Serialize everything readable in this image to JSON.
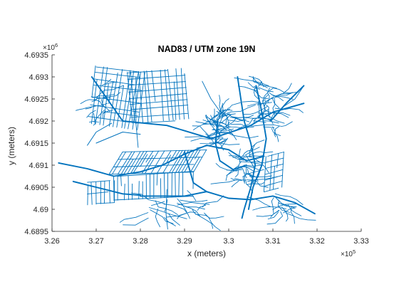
{
  "chart_data": {
    "type": "map",
    "title": "NAD83 / UTM zone 19N",
    "xlabel": "x (meters)",
    "ylabel": "y (meters)",
    "x_exponent_label": "×10",
    "x_exponent_power": "5",
    "y_exponent_label": "×10",
    "y_exponent_power": "6",
    "xlim": [
      3.26,
      3.33
    ],
    "ylim": [
      4.6895,
      4.6935
    ],
    "x_ticks": [
      3.26,
      3.27,
      3.28,
      3.29,
      3.3,
      3.31,
      3.32,
      3.33
    ],
    "x_tick_labels": [
      "3.26",
      "3.27",
      "3.28",
      "3.29",
      "3.3",
      "3.31",
      "3.32",
      "3.33"
    ],
    "y_ticks": [
      4.6895,
      4.69,
      4.6905,
      4.691,
      4.6915,
      4.692,
      4.6925,
      4.693,
      4.6935
    ],
    "y_tick_labels": [
      "4.6895",
      "4.69",
      "4.6905",
      "4.691",
      "4.6915",
      "4.692",
      "4.6925",
      "4.693",
      "4.6935"
    ],
    "line_color": "#0072BD",
    "series": [
      {
        "type": "highway",
        "polylines": [
          [
            [
              3.2615,
              4.69105
            ],
            [
              3.268,
              4.69092
            ],
            [
              3.274,
              4.69075
            ],
            [
              3.28,
              4.69085
            ],
            [
              3.285,
              4.691
            ],
            [
              3.29,
              4.69125
            ],
            [
              3.295,
              4.69145
            ],
            [
              3.3,
              4.69135
            ],
            [
              3.304,
              4.6911
            ],
            [
              3.308,
              4.6912
            ]
          ],
          [
            [
              3.2648,
              4.69063
            ],
            [
              3.27,
              4.6905
            ],
            [
              3.276,
              4.69035
            ],
            [
              3.28,
              4.69032
            ]
          ],
          [
            [
              3.28,
              4.6903
            ],
            [
              3.285,
              4.6903
            ],
            [
              3.29,
              4.6903
            ],
            [
              3.295,
              4.6904
            ],
            [
              3.3,
              4.69025
            ],
            [
              3.305,
              4.69022
            ],
            [
              3.31,
              4.6903
            ],
            [
              3.315,
              4.69015
            ],
            [
              3.3195,
              4.6899
            ]
          ],
          [
            [
              3.269,
              4.693
            ],
            [
              3.276,
              4.692
            ],
            [
              3.286,
              4.6919
            ],
            [
              3.296,
              4.6916
            ],
            [
              3.305,
              4.6919
            ],
            [
              3.31,
              4.6922
            ],
            [
              3.317,
              4.6924
            ]
          ],
          [
            [
              3.302,
              4.693
            ],
            [
              3.3035,
              4.692
            ],
            [
              3.305,
              4.6915
            ],
            [
              3.306,
              4.691
            ],
            [
              3.305,
              4.6905
            ],
            [
              3.3035,
              4.69
            ],
            [
              3.303,
              4.6898
            ]
          ],
          [
            [
              3.3062,
              4.6928
            ],
            [
              3.3075,
              4.6922
            ],
            [
              3.3085,
              4.6916
            ],
            [
              3.3075,
              4.691
            ],
            [
              3.3055,
              4.6905
            ],
            [
              3.3045,
              4.69
            ]
          ],
          [
            [
              3.2975,
              4.692
            ],
            [
              3.297,
              4.6915
            ],
            [
              3.298,
              4.6911
            ],
            [
              3.301,
              4.6909
            ],
            [
              3.304,
              4.691
            ]
          ],
          [
            [
              3.3095,
              4.692
            ],
            [
              3.313,
              4.6924
            ],
            [
              3.317,
              4.6928
            ]
          ],
          [
            [
              3.29,
              4.6913
            ],
            [
              3.292,
              4.6906
            ],
            [
              3.295,
              4.6904
            ]
          ]
        ]
      }
    ],
    "network_extent": {
      "x": [
        3.2615,
        3.32
      ],
      "y": [
        4.6896,
        4.69315
      ]
    }
  }
}
